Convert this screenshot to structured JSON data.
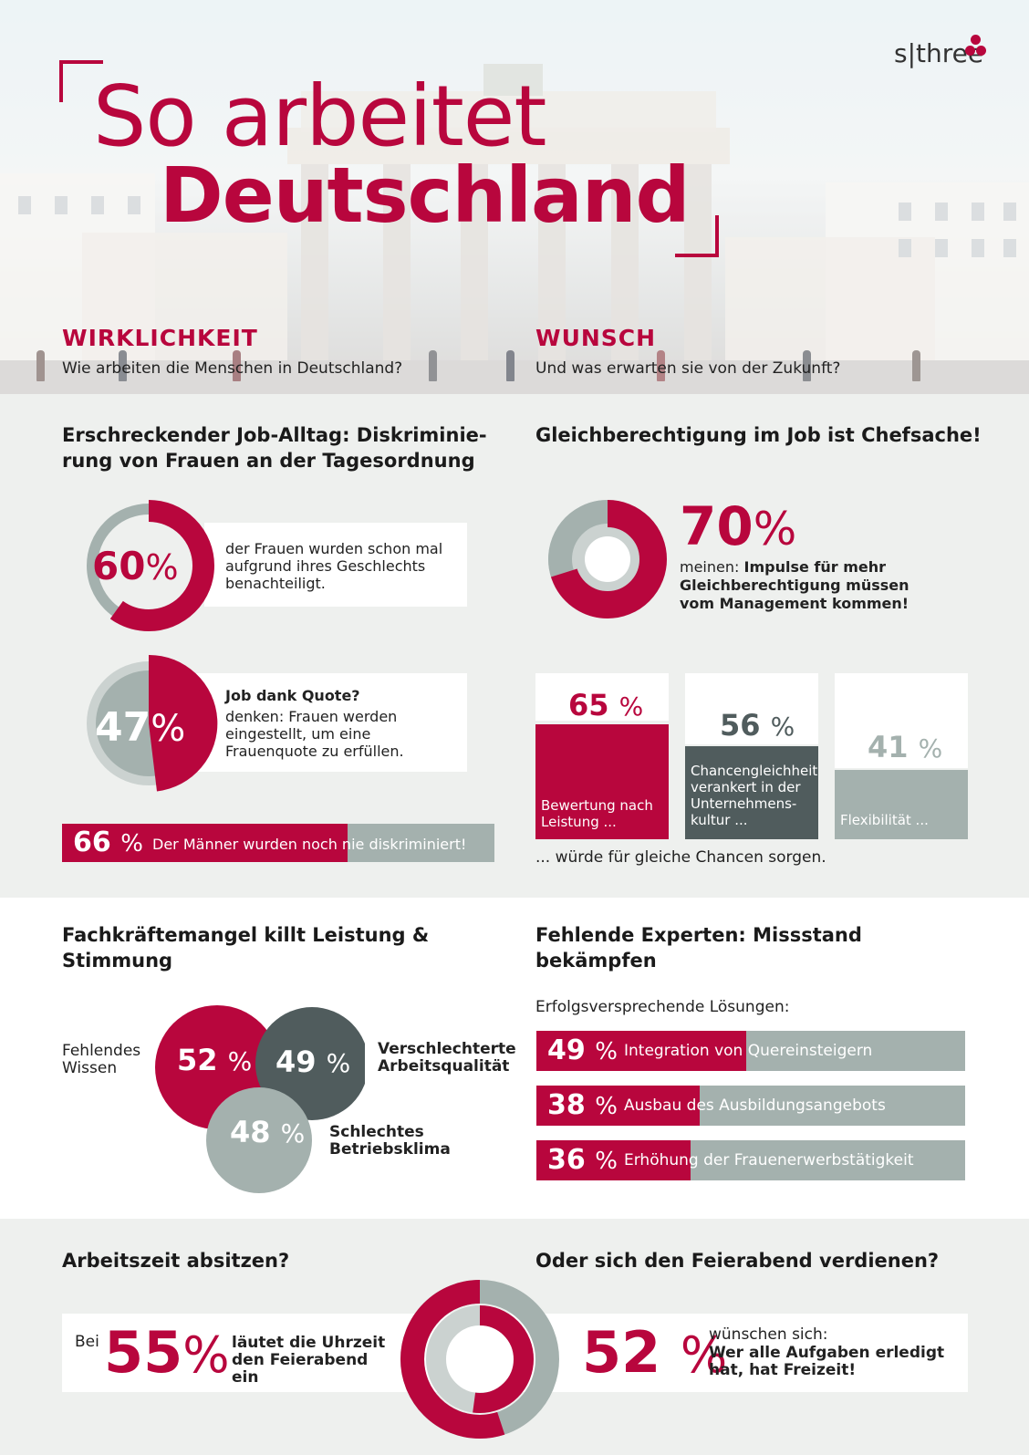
{
  "header": {
    "title_line1": "So arbeitet",
    "title_line2": "Deutschland",
    "logo": "s|three",
    "left_heading": "WIRKLICHKEIT",
    "left_sub": "Wie arbeiten die Menschen in Deutschland?",
    "right_heading": "WUNSCH",
    "right_sub": "Und was erwarten sie von der Zukunft?"
  },
  "colors": {
    "accent": "#b8063d",
    "grey": "#a4b1ae",
    "dark": "#505c5d",
    "background": "#eef0ee"
  },
  "discrimination": {
    "heading": "Erschreckender Job-Alltag: Diskriminie- rung von Frauen an der Tagesordnung",
    "stat1": {
      "value": 60,
      "pct": "60",
      "unit": "%",
      "text": "der Frauen wurden schon mal aufgrund ihres Geschlechts benachteiligt."
    },
    "stat2": {
      "value": 47,
      "pct": "47",
      "unit": "%",
      "title": "Job dank Quote?",
      "text": "denken: Frauen werden eingestellt, um eine Frauenquote zu erfüllen."
    },
    "stat3": {
      "value": 66,
      "pct": "66",
      "unit": "%",
      "text": "Der Männer wurden noch nie diskriminiert!"
    }
  },
  "equality": {
    "heading": "Gleichberechtigung im Job ist Chefsache!",
    "main": {
      "value": 70,
      "pct": "70",
      "unit": "%",
      "prefix": "meinen:",
      "text": "Impulse für mehr Gleichberechtigung müssen vom Management kommen!"
    },
    "cards": [
      {
        "value": 65,
        "pct": "65",
        "unit": "%",
        "label": "Bewertung nach Leistung ...",
        "color": "#b8063d"
      },
      {
        "value": 56,
        "pct": "56",
        "unit": "%",
        "label": "Chancengleichheit verankert in der Unternehmens- kultur ...",
        "color": "#505c5d"
      },
      {
        "value": 41,
        "pct": "41",
        "unit": "%",
        "label": "Flexibilität ...",
        "color": "#a4b1ae"
      }
    ],
    "footer": "... würde für gleiche Chancen sorgen."
  },
  "skills": {
    "heading": "Fachkräftemangel killt Leistung & Stimmung",
    "circles": [
      {
        "value": 52,
        "pct": "52",
        "unit": "%",
        "label": "Fehlendes Wissen"
      },
      {
        "value": 49,
        "pct": "49",
        "unit": "%",
        "label": "Verschlechterte Arbeitsqualität"
      },
      {
        "value": 48,
        "pct": "48",
        "unit": "%",
        "label": "Schlechtes Betriebsklima"
      }
    ]
  },
  "experts": {
    "heading": "Fehlende Experten: Missstand bekämpfen",
    "sub": "Erfolgsversprechende Lösungen:",
    "bars": [
      {
        "value": 49,
        "pct": "49",
        "unit": "%",
        "label": "Integration von Quereinsteigern"
      },
      {
        "value": 38,
        "pct": "38",
        "unit": "%",
        "label": "Ausbau des Ausbildungsangebots"
      },
      {
        "value": 36,
        "pct": "36",
        "unit": "%",
        "label": "Erhöhung der Frauenerwerbstätigkeit"
      }
    ]
  },
  "worktime": {
    "left_heading": "Arbeitszeit absitzen?",
    "right_heading": "Oder sich den Feierabend verdienen?",
    "left": {
      "prefix": "Bei",
      "value": 55,
      "pct": "55",
      "unit": "%",
      "text": "läutet die Uhrzeit den Feierabend ein"
    },
    "right": {
      "value": 52,
      "pct": "52",
      "unit": "%",
      "prefix": "wünschen sich:",
      "text": "Wer alle Aufgaben erledigt hat, hat Freizeit!"
    }
  }
}
